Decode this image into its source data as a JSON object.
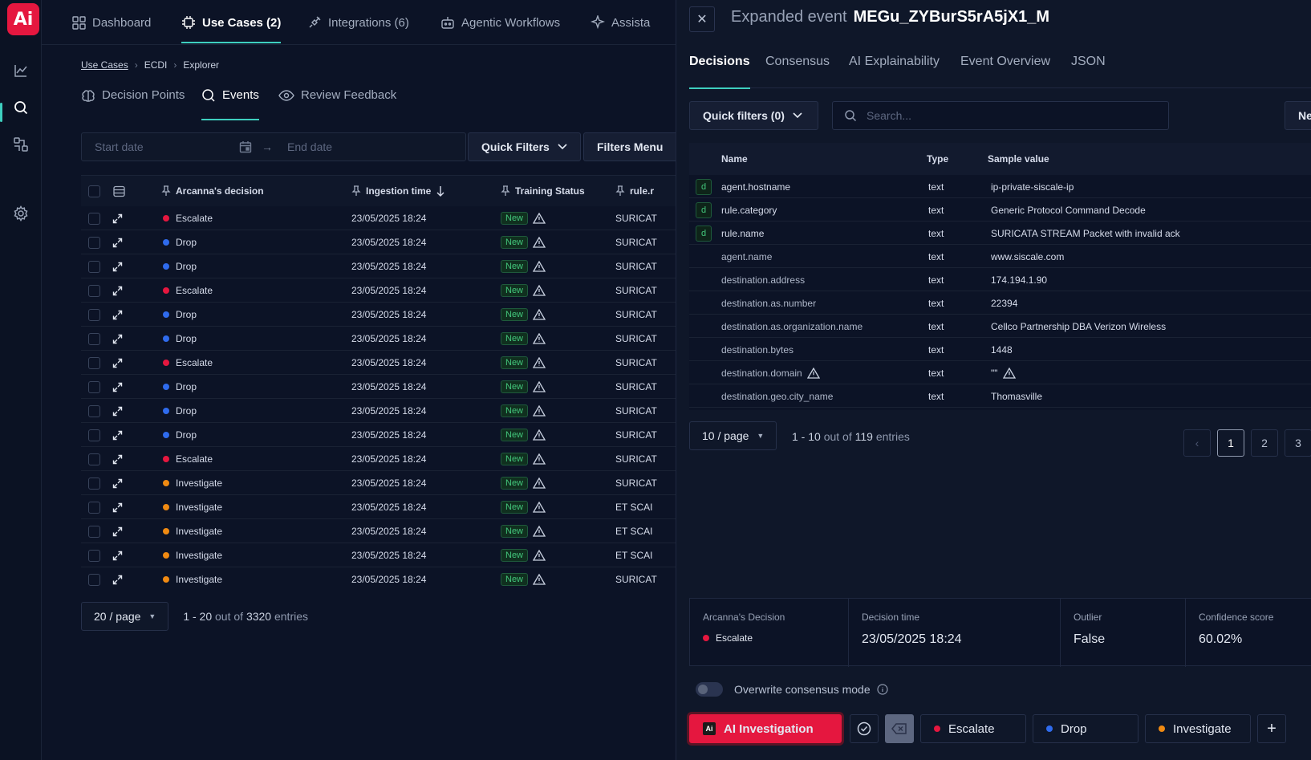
{
  "logo": {
    "text": "Ai"
  },
  "topnav": {
    "items": [
      {
        "label": "Dashboard"
      },
      {
        "label": "Use Cases (2)"
      },
      {
        "label": "Integrations (6)"
      },
      {
        "label": "Agentic Workflows"
      },
      {
        "label": "Assista"
      }
    ]
  },
  "breadcrumb": {
    "items": [
      "Use Cases",
      "ECDI",
      "Explorer"
    ]
  },
  "subtabs": [
    {
      "label": "Decision Points"
    },
    {
      "label": "Events"
    },
    {
      "label": "Review Feedback"
    }
  ],
  "filters": {
    "start_placeholder": "Start date",
    "end_placeholder": "End date",
    "quick_filters": "Quick Filters",
    "filters_menu": "Filters Menu"
  },
  "table": {
    "columns": {
      "decision": "Arcanna's decision",
      "ingestion": "Ingestion time",
      "training": "Training Status",
      "rule": "rule.r"
    },
    "rows": [
      {
        "decision": "Escalate",
        "color": "#e5173f",
        "time": "23/05/2025 18:24",
        "status": "New",
        "rule": "SURICAT"
      },
      {
        "decision": "Drop",
        "color": "#2f6bed",
        "time": "23/05/2025 18:24",
        "status": "New",
        "rule": "SURICAT"
      },
      {
        "decision": "Drop",
        "color": "#2f6bed",
        "time": "23/05/2025 18:24",
        "status": "New",
        "rule": "SURICAT"
      },
      {
        "decision": "Escalate",
        "color": "#e5173f",
        "time": "23/05/2025 18:24",
        "status": "New",
        "rule": "SURICAT"
      },
      {
        "decision": "Drop",
        "color": "#2f6bed",
        "time": "23/05/2025 18:24",
        "status": "New",
        "rule": "SURICAT"
      },
      {
        "decision": "Drop",
        "color": "#2f6bed",
        "time": "23/05/2025 18:24",
        "status": "New",
        "rule": "SURICAT"
      },
      {
        "decision": "Escalate",
        "color": "#e5173f",
        "time": "23/05/2025 18:24",
        "status": "New",
        "rule": "SURICAT"
      },
      {
        "decision": "Drop",
        "color": "#2f6bed",
        "time": "23/05/2025 18:24",
        "status": "New",
        "rule": "SURICAT"
      },
      {
        "decision": "Drop",
        "color": "#2f6bed",
        "time": "23/05/2025 18:24",
        "status": "New",
        "rule": "SURICAT"
      },
      {
        "decision": "Drop",
        "color": "#2f6bed",
        "time": "23/05/2025 18:24",
        "status": "New",
        "rule": "SURICAT"
      },
      {
        "decision": "Escalate",
        "color": "#e5173f",
        "time": "23/05/2025 18:24",
        "status": "New",
        "rule": "SURICAT"
      },
      {
        "decision": "Investigate",
        "color": "#f08a12",
        "time": "23/05/2025 18:24",
        "status": "New",
        "rule": "SURICAT"
      },
      {
        "decision": "Investigate",
        "color": "#f08a12",
        "time": "23/05/2025 18:24",
        "status": "New",
        "rule": "ET SCAI"
      },
      {
        "decision": "Investigate",
        "color": "#f08a12",
        "time": "23/05/2025 18:24",
        "status": "New",
        "rule": "ET SCAI"
      },
      {
        "decision": "Investigate",
        "color": "#f08a12",
        "time": "23/05/2025 18:24",
        "status": "New",
        "rule": "ET SCAI"
      },
      {
        "decision": "Investigate",
        "color": "#f08a12",
        "time": "23/05/2025 18:24",
        "status": "New",
        "rule": "SURICAT"
      }
    ]
  },
  "pager": {
    "page_size": "20 / page",
    "range": "1 - 20",
    "out_of": "out of",
    "total": "3320",
    "entries": "entries"
  },
  "drawer": {
    "title_prefix": "Expanded event",
    "event_id": "MEGu_ZYBurS5rA5jX1_M",
    "tabs": [
      {
        "label": "Decisions"
      },
      {
        "label": "Consensus"
      },
      {
        "label": "AI Explainability"
      },
      {
        "label": "Event Overview"
      },
      {
        "label": "JSON"
      }
    ],
    "quick_filters": "Quick filters (0)",
    "search_placeholder": "Search...",
    "new_button": "Ne",
    "fields_columns": {
      "name": "Name",
      "type": "Type",
      "sample": "Sample value"
    },
    "fields": [
      {
        "badge": "d",
        "name": "agent.hostname",
        "type": "text",
        "value": "ip-private-siscale-ip"
      },
      {
        "badge": "d",
        "name": "rule.category",
        "type": "text",
        "value": "Generic Protocol Command Decode"
      },
      {
        "badge": "d",
        "name": "rule.name",
        "type": "text",
        "value": "SURICATA STREAM Packet with invalid ack"
      },
      {
        "name": "agent.name",
        "type": "text",
        "value": "www.siscale.com"
      },
      {
        "name": "destination.address",
        "type": "text",
        "value": "174.194.1.90"
      },
      {
        "name": "destination.as.number",
        "type": "text",
        "value": "22394"
      },
      {
        "name": "destination.as.organization.name",
        "type": "text",
        "value": "Cellco Partnership DBA Verizon Wireless"
      },
      {
        "name": "destination.bytes",
        "type": "text",
        "value": "1448"
      },
      {
        "name": "destination.domain",
        "type": "text",
        "value": "\"\"",
        "warn": true
      },
      {
        "name": "destination.geo.city_name",
        "type": "text",
        "value": "Thomasville"
      }
    ],
    "pager": {
      "page_size": "10 / page",
      "range": "1 - 10",
      "out_of": "out of",
      "total": "119",
      "entries": "entries",
      "pages": [
        "1",
        "2",
        "3"
      ]
    },
    "summary": {
      "decision_label": "Arcanna's Decision",
      "decision_value": "Escalate",
      "decision_color": "#e5173f",
      "time_label": "Decision time",
      "time_value": "23/05/2025 18:24",
      "outlier_label": "Outlier",
      "outlier_value": "False",
      "confidence_label": "Confidence score",
      "confidence_value": "60.02%"
    },
    "overwrite_label": "Overwrite consensus mode",
    "actions": {
      "ai": "AI Investigation",
      "escalate": "Escalate",
      "drop": "Drop",
      "investigate": "Investigate"
    }
  },
  "colors": {
    "accent": "#3ecfbf",
    "brand": "#e5173f",
    "escalate": "#e5173f",
    "drop": "#2f6bed",
    "investigate": "#f08a12"
  }
}
